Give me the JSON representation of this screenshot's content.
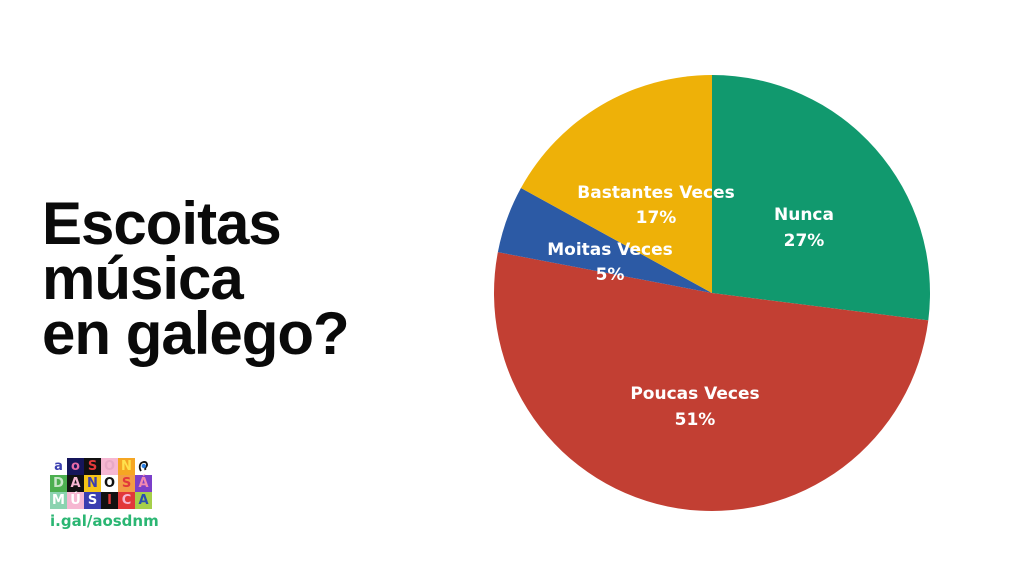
{
  "title": {
    "lines": [
      "Escoitas",
      "música",
      "en galego?"
    ]
  },
  "logo": {
    "rows": [
      [
        {
          "ch": "a",
          "bg": "#ffffff",
          "fg": "#3b3fb0"
        },
        {
          "ch": "o",
          "bg": "#15155a",
          "fg": "#e66aa6"
        },
        {
          "ch": "S",
          "bg": "#111111",
          "fg": "#e2383a"
        },
        {
          "ch": "O",
          "bg": "#f6b7d2",
          "fg": "#e8a9c6"
        },
        {
          "ch": "N",
          "bg": "#f5a623",
          "fg": "#ffe14d"
        },
        {
          "ch": "ear",
          "bg": "#ffffff",
          "fg": "#2a7ee0",
          "icon": "ear-icon"
        }
      ],
      [
        {
          "ch": "D",
          "bg": "#4caf50",
          "fg": "#c8e6c9"
        },
        {
          "ch": "A",
          "bg": "#111111",
          "fg": "#f6b7d2"
        },
        {
          "ch": "N",
          "bg": "#f5c518",
          "fg": "#3b3fb0"
        },
        {
          "ch": "O",
          "bg": "#ffffff",
          "fg": "#111111"
        },
        {
          "ch": "S",
          "bg": "#f39c45",
          "fg": "#e2383a"
        },
        {
          "ch": "Á",
          "bg": "#7b3fc9",
          "fg": "#f28ab0"
        }
      ],
      [
        {
          "ch": "M",
          "bg": "#8bd3b0",
          "fg": "#ffffff"
        },
        {
          "ch": "Ú",
          "bg": "#f6b7d2",
          "fg": "#ffffff"
        },
        {
          "ch": "S",
          "bg": "#3b3fb0",
          "fg": "#ffffff"
        },
        {
          "ch": "I",
          "bg": "#111111",
          "fg": "#e2383a"
        },
        {
          "ch": "C",
          "bg": "#e2383a",
          "fg": "#f6b7d2"
        },
        {
          "ch": "A",
          "bg": "#a6cf4a",
          "fg": "#2a4fb0"
        }
      ]
    ],
    "url": "i.gal/aosdnm"
  },
  "chart_data": {
    "type": "pie",
    "title": "Escoitas música en galego?",
    "start_angle": "12 o'clock, clockwise",
    "slices": [
      {
        "label": "Nunca",
        "value": 27,
        "display": "27%",
        "color": "#11996e"
      },
      {
        "label": "Poucas Veces",
        "value": 51,
        "display": "51%",
        "color": "#c23f33"
      },
      {
        "label": "Moitas Veces",
        "value": 5,
        "display": "5%",
        "color": "#2c5aa5"
      },
      {
        "label": "Bastantes Veces",
        "value": 17,
        "display": "17%",
        "color": "#eeb108"
      }
    ],
    "legend": "none (inline labels)"
  }
}
